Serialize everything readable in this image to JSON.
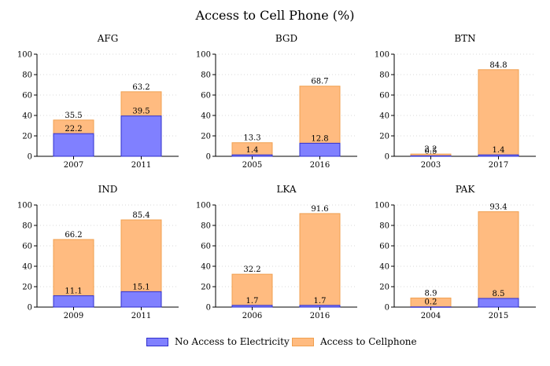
{
  "title": "Access to Cell Phone (%)",
  "colors": {
    "no_electricity": "#8080ff",
    "no_electricity_stroke": "#3030cc",
    "cellphone": "#ffbb80",
    "cellphone_stroke": "#f0a050",
    "grid": "#d8d8d8",
    "axis": "#000000"
  },
  "chart_data": [
    {
      "type": "bar",
      "title": "AFG",
      "categories": [
        "2007",
        "2011"
      ],
      "ylim": [
        0,
        100
      ],
      "yticks": [
        0,
        20,
        40,
        60,
        80,
        100
      ],
      "series": [
        {
          "name": "No Access to Electricity",
          "values": [
            22.2,
            39.5
          ]
        },
        {
          "name": "Access to Cellphone",
          "values": [
            35.5,
            63.2
          ]
        }
      ]
    },
    {
      "type": "bar",
      "title": "BGD",
      "categories": [
        "2005",
        "2016"
      ],
      "ylim": [
        0,
        100
      ],
      "yticks": [
        0,
        20,
        40,
        60,
        80,
        100
      ],
      "series": [
        {
          "name": "No Access to Electricity",
          "values": [
            1.4,
            12.8
          ]
        },
        {
          "name": "Access to Cellphone",
          "values": [
            13.3,
            68.7
          ]
        }
      ]
    },
    {
      "type": "bar",
      "title": "BTN",
      "categories": [
        "2003",
        "2017"
      ],
      "ylim": [
        0,
        100
      ],
      "yticks": [
        0,
        20,
        40,
        60,
        80,
        100
      ],
      "series": [
        {
          "name": "No Access to Electricity",
          "values": [
            0.5,
            1.4
          ]
        },
        {
          "name": "Access to Cellphone",
          "values": [
            2.2,
            84.8
          ]
        }
      ]
    },
    {
      "type": "bar",
      "title": "IND",
      "categories": [
        "2009",
        "2011"
      ],
      "ylim": [
        0,
        100
      ],
      "yticks": [
        0,
        20,
        40,
        60,
        80,
        100
      ],
      "series": [
        {
          "name": "No Access to Electricity",
          "values": [
            11.1,
            15.1
          ]
        },
        {
          "name": "Access to Cellphone",
          "values": [
            66.2,
            85.4
          ]
        }
      ]
    },
    {
      "type": "bar",
      "title": "LKA",
      "categories": [
        "2006",
        "2016"
      ],
      "ylim": [
        0,
        100
      ],
      "yticks": [
        0,
        20,
        40,
        60,
        80,
        100
      ],
      "series": [
        {
          "name": "No Access to Electricity",
          "values": [
            1.7,
            1.7
          ]
        },
        {
          "name": "Access to Cellphone",
          "values": [
            32.2,
            91.6
          ]
        }
      ]
    },
    {
      "type": "bar",
      "title": "PAK",
      "categories": [
        "2004",
        "2015"
      ],
      "ylim": [
        0,
        100
      ],
      "yticks": [
        0,
        20,
        40,
        60,
        80,
        100
      ],
      "series": [
        {
          "name": "No Access to Electricity",
          "values": [
            0.2,
            8.5
          ]
        },
        {
          "name": "Access to Cellphone",
          "values": [
            8.9,
            93.4
          ]
        }
      ]
    }
  ],
  "legend": [
    {
      "label": "No Access to Electricity"
    },
    {
      "label": "Access to Cellphone"
    }
  ]
}
